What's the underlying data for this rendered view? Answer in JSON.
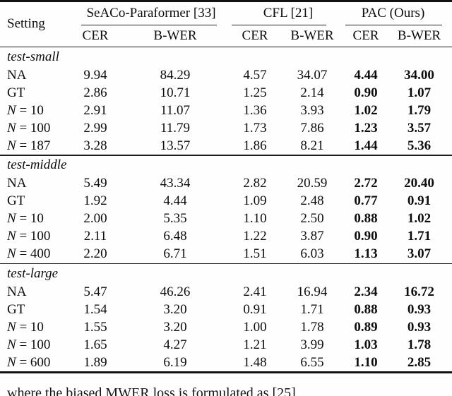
{
  "table": {
    "header": {
      "setting": "Setting",
      "groups": [
        {
          "label": "SeACo-Paraformer [33]"
        },
        {
          "label": "CFL [21]"
        },
        {
          "label": "PAC (Ours)"
        }
      ],
      "subcols": [
        "CER",
        "B-WER",
        "CER",
        "B-WER",
        "CER",
        "B-WER"
      ]
    },
    "sections": [
      {
        "label": "test-small",
        "rows": [
          {
            "setting": "NA",
            "v": [
              "9.94",
              "84.29",
              "4.57",
              "34.07",
              "4.44",
              "34.00"
            ]
          },
          {
            "setting": "GT",
            "v": [
              "2.86",
              "10.71",
              "1.25",
              "2.14",
              "0.90",
              "1.07"
            ]
          },
          {
            "setting": "N = 10",
            "v": [
              "2.91",
              "11.07",
              "1.36",
              "3.93",
              "1.02",
              "1.79"
            ]
          },
          {
            "setting": "N = 100",
            "v": [
              "2.99",
              "11.79",
              "1.73",
              "7.86",
              "1.23",
              "3.57"
            ]
          },
          {
            "setting": "N = 187",
            "v": [
              "3.28",
              "13.57",
              "1.86",
              "8.21",
              "1.44",
              "5.36"
            ]
          }
        ]
      },
      {
        "label": "test-middle",
        "rows": [
          {
            "setting": "NA",
            "v": [
              "5.49",
              "43.34",
              "2.82",
              "20.59",
              "2.72",
              "20.40"
            ]
          },
          {
            "setting": "GT",
            "v": [
              "1.92",
              "4.44",
              "1.09",
              "2.48",
              "0.77",
              "0.91"
            ]
          },
          {
            "setting": "N = 10",
            "v": [
              "2.00",
              "5.35",
              "1.10",
              "2.50",
              "0.88",
              "1.02"
            ]
          },
          {
            "setting": "N = 100",
            "v": [
              "2.11",
              "6.48",
              "1.22",
              "3.87",
              "0.90",
              "1.71"
            ]
          },
          {
            "setting": "N = 400",
            "v": [
              "2.20",
              "6.71",
              "1.51",
              "6.03",
              "1.13",
              "3.07"
            ]
          }
        ]
      },
      {
        "label": "test-large",
        "rows": [
          {
            "setting": "NA",
            "v": [
              "5.47",
              "46.26",
              "2.41",
              "16.94",
              "2.34",
              "16.72"
            ]
          },
          {
            "setting": "GT",
            "v": [
              "1.54",
              "3.20",
              "0.91",
              "1.71",
              "0.88",
              "0.93"
            ]
          },
          {
            "setting": "N = 10",
            "v": [
              "1.55",
              "3.20",
              "1.00",
              "1.78",
              "0.89",
              "0.93"
            ]
          },
          {
            "setting": "N = 100",
            "v": [
              "1.65",
              "4.27",
              "1.21",
              "3.99",
              "1.03",
              "1.78"
            ]
          },
          {
            "setting": "N = 600",
            "v": [
              "1.89",
              "6.19",
              "1.48",
              "6.55",
              "1.10",
              "2.85"
            ]
          }
        ]
      }
    ]
  },
  "footer": {
    "partial_text": "where the biased MWER loss is formulated as  [25]"
  }
}
